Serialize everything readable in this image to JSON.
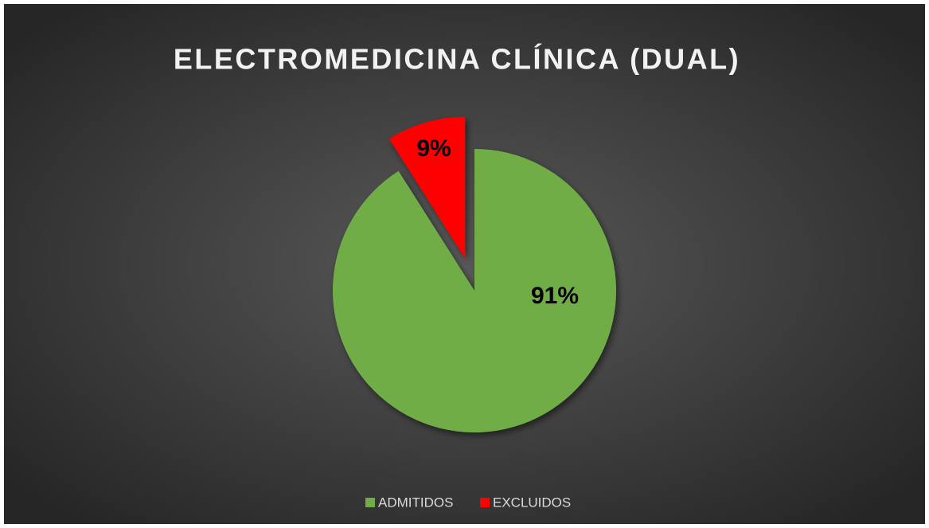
{
  "chart_data": {
    "type": "pie",
    "title": "ELECTROMEDICINA CLÍNICA (DUAL)",
    "categories": [
      "ADMITIDOS",
      "EXCLUIDOS"
    ],
    "values": [
      91,
      9
    ],
    "value_labels": [
      "91%",
      "9%"
    ],
    "colors": [
      "#70ad47",
      "#ff0000"
    ],
    "legend": "bottom"
  }
}
